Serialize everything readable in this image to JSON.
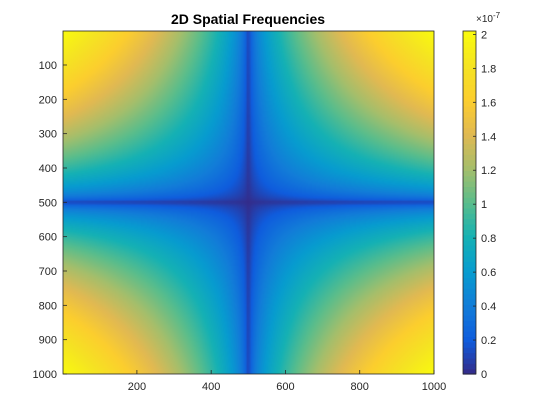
{
  "chart_data": {
    "type": "heatmap",
    "title": "2D Spatial Frequencies",
    "xlabel": "",
    "ylabel": "",
    "x_range": [
      1,
      1000
    ],
    "y_range": [
      1,
      1000
    ],
    "y_reversed": true,
    "x_ticks": [
      200,
      400,
      600,
      800,
      1000
    ],
    "x_tick_labels": [
      "200",
      "400",
      "600",
      "800",
      "1000"
    ],
    "y_ticks": [
      100,
      200,
      300,
      400,
      500,
      600,
      700,
      800,
      900,
      1000
    ],
    "y_tick_labels": [
      "100",
      "200",
      "300",
      "400",
      "500",
      "600",
      "700",
      "800",
      "900",
      "1000"
    ],
    "grid": false,
    "colormap": "parula",
    "colorbar": {
      "range": [
        0,
        2.02
      ],
      "ticks": [
        0,
        0.2,
        0.4,
        0.6,
        0.8,
        1,
        1.2,
        1.4,
        1.6,
        1.8,
        2
      ],
      "tick_labels": [
        "0",
        "0.2",
        "0.4",
        "0.6",
        "0.8",
        "1",
        "1.2",
        "1.4",
        "1.6",
        "1.8",
        "2"
      ],
      "exponent_label": "×10",
      "exponent_power": "-7",
      "placement": "right"
    },
    "field": {
      "description_of_values": "value(x,y) = max * (|x-500|/500 * |y-500|/500)^0.5, zero along center cross, max in corners",
      "max": 2.02,
      "center": 500,
      "power": 0.5
    }
  }
}
